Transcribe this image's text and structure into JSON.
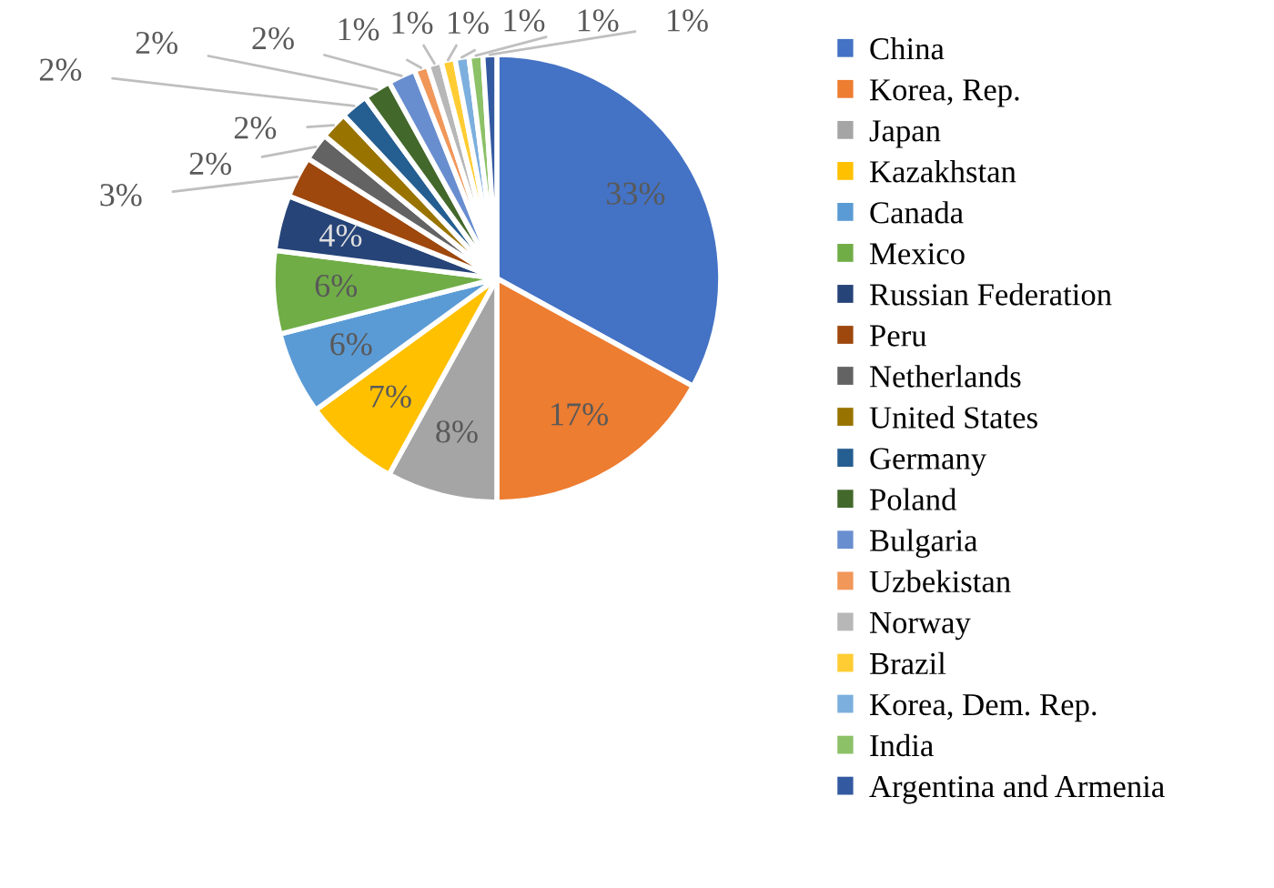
{
  "chart_data": {
    "type": "pie",
    "categories": [
      "China",
      "Korea, Rep.",
      "Japan",
      "Kazakhstan",
      "Canada",
      "Mexico",
      "Russian Federation",
      "Peru",
      "Netherlands",
      "United States",
      "Germany",
      "Poland",
      "Bulgaria",
      "Uzbekistan",
      "Norway",
      "Brazil",
      "Korea, Dem. Rep.",
      "India",
      "Argentina and Armenia"
    ],
    "values": [
      33,
      17,
      8,
      7,
      6,
      6,
      4,
      3,
      2,
      2,
      2,
      2,
      2,
      1,
      1,
      1,
      1,
      1,
      1
    ],
    "colors": [
      "#4472c4",
      "#ed7d31",
      "#a5a5a5",
      "#ffc000",
      "#5b9bd5",
      "#70ad47",
      "#264478",
      "#9e480e",
      "#636363",
      "#997300",
      "#255e91",
      "#43682b",
      "#698ed0",
      "#f1975a",
      "#b7b7b7",
      "#ffcd33",
      "#7cafdd",
      "#8cc168",
      "#335aa1"
    ],
    "value_labels": [
      "33%",
      "17%",
      "8%",
      "7%",
      "6%",
      "6%",
      "4%",
      "3%",
      "2%",
      "2%",
      "2%",
      "2%",
      "2%",
      "1%",
      "1%",
      "1%",
      "1%",
      "1%",
      "1%"
    ],
    "legend": "right"
  }
}
